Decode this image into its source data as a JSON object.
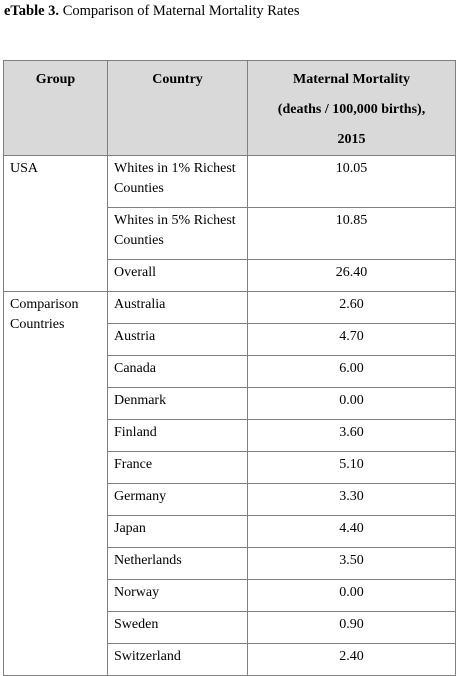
{
  "caption": {
    "label": "eTable 3.",
    "title": " Comparison of Maternal Mortality Rates"
  },
  "header": {
    "group": "Group",
    "country": "Country",
    "mortality_line1": "Maternal Mortality",
    "mortality_line2": "(deaths / 100,000 births),",
    "mortality_line3": "2015"
  },
  "groups": [
    {
      "name": "USA",
      "rows": [
        {
          "country": "Whites in 1% Richest Counties",
          "value": "10.05"
        },
        {
          "country": "Whites in 5% Richest Counties",
          "value": "10.85"
        },
        {
          "country": "Overall",
          "value": "26.40"
        }
      ]
    },
    {
      "name": "Comparison Countries",
      "rows": [
        {
          "country": "Australia",
          "value": "2.60"
        },
        {
          "country": "Austria",
          "value": "4.70"
        },
        {
          "country": "Canada",
          "value": "6.00"
        },
        {
          "country": "Denmark",
          "value": "0.00"
        },
        {
          "country": "Finland",
          "value": "3.60"
        },
        {
          "country": "France",
          "value": "5.10"
        },
        {
          "country": "Germany",
          "value": "3.30"
        },
        {
          "country": "Japan",
          "value": "4.40"
        },
        {
          "country": "Netherlands",
          "value": "3.50"
        },
        {
          "country": "Norway",
          "value": "0.00"
        },
        {
          "country": "Sweden",
          "value": "0.90"
        },
        {
          "country": "Switzerland",
          "value": "2.40"
        }
      ]
    }
  ]
}
